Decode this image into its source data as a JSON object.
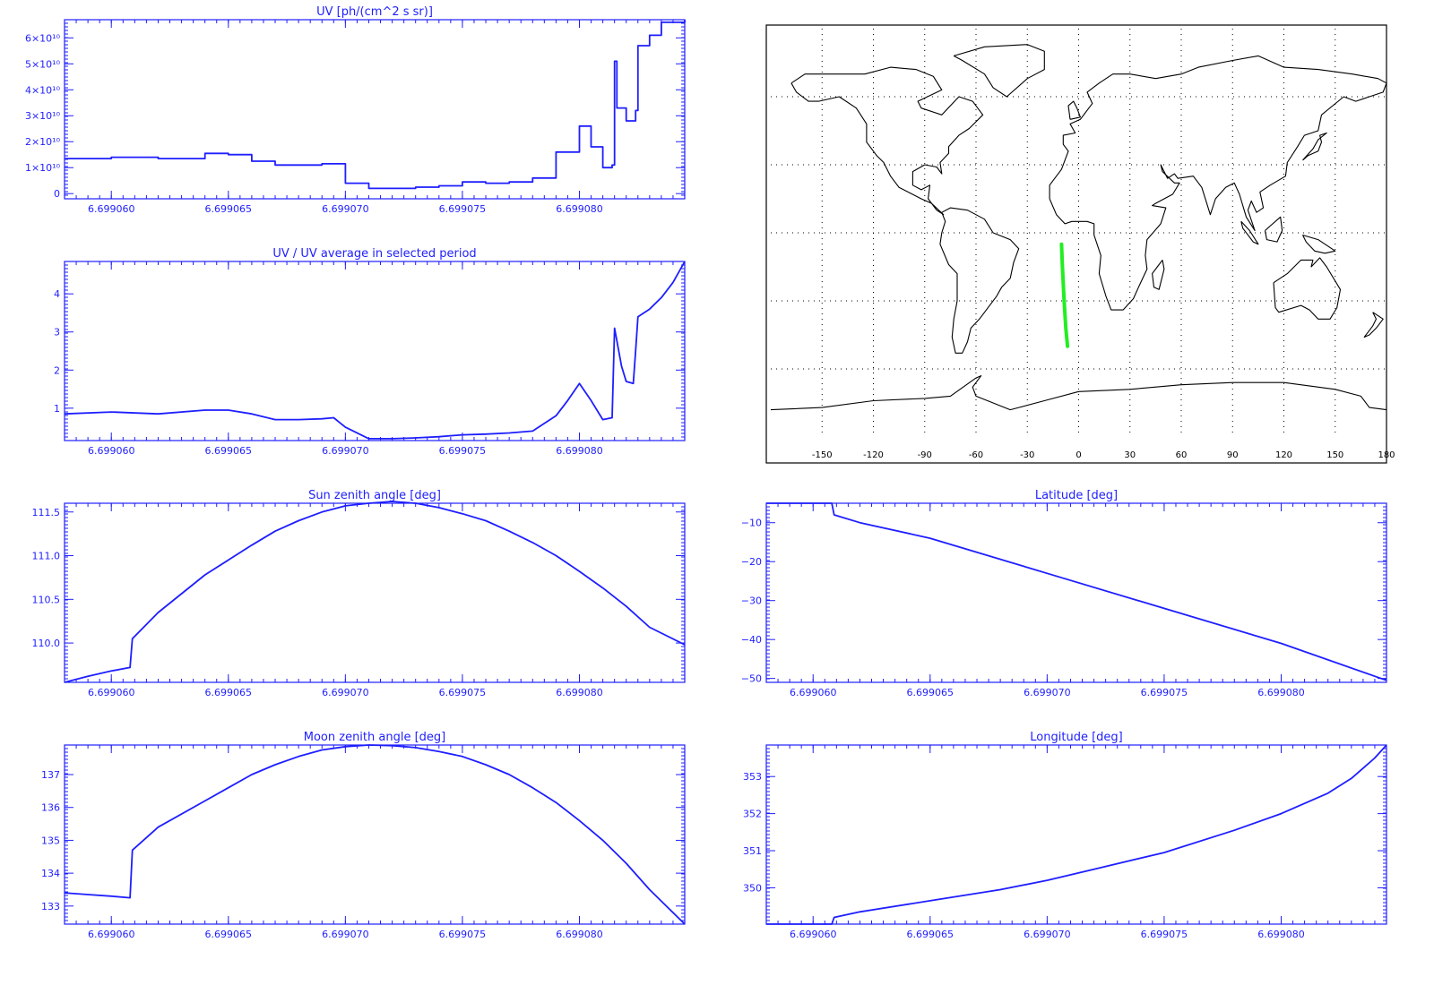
{
  "colors": {
    "axis": "#1e1eff",
    "series": "#1e1eff",
    "track": "#22ee22",
    "map": "#000000"
  },
  "chart_data": [
    {
      "id": "uv",
      "type": "line",
      "step": true,
      "title": "UV [ph/(cm^2 s sr)]",
      "xlim": [
        6.699058,
        6.6990845
      ],
      "ylim": [
        -0.2,
        6.7
      ],
      "x_ticks": [
        6.69906,
        6.699065,
        6.69907,
        6.699075,
        6.69908
      ],
      "x_tick_labels": [
        "6.699060",
        "6.699065",
        "6.699070",
        "6.699075",
        "6.699080"
      ],
      "y_ticks": [
        0,
        1,
        2,
        3,
        4,
        5,
        6
      ],
      "y_tick_labels": [
        "0",
        "1×10¹⁰",
        "2×10¹⁰",
        "3×10¹⁰",
        "4×10¹⁰",
        "5×10¹⁰",
        "6×10¹⁰"
      ],
      "y_unit_note": "values in units of 1e10",
      "x": [
        6.699058,
        6.69906,
        6.699062,
        6.699064,
        6.699065,
        6.699066,
        6.699067,
        6.699068,
        6.699069,
        6.69907,
        6.699071,
        6.699072,
        6.699073,
        6.699074,
        6.699075,
        6.699076,
        6.699077,
        6.699078,
        6.699079,
        6.69908,
        6.6990805,
        6.699081,
        6.6990814,
        6.6990815,
        6.6990816,
        6.699082,
        6.6990824,
        6.6990825,
        6.699083,
        6.6990835,
        6.6990845
      ],
      "y": [
        1.35,
        1.4,
        1.35,
        1.55,
        1.5,
        1.25,
        1.1,
        1.1,
        1.15,
        0.4,
        0.2,
        0.2,
        0.25,
        0.3,
        0.45,
        0.4,
        0.45,
        0.6,
        1.6,
        2.6,
        1.8,
        1.0,
        1.1,
        5.1,
        3.3,
        2.8,
        3.2,
        5.7,
        6.1,
        6.6,
        6.7
      ]
    },
    {
      "id": "uv-ratio",
      "type": "line",
      "title": "UV / UV average in selected period",
      "xlim": [
        6.699058,
        6.6990845
      ],
      "ylim": [
        0.15,
        4.85
      ],
      "x_ticks": [
        6.69906,
        6.699065,
        6.69907,
        6.699075,
        6.69908
      ],
      "x_tick_labels": [
        "6.699060",
        "6.699065",
        "6.699070",
        "6.699075",
        "6.699080"
      ],
      "y_ticks": [
        1,
        2,
        3,
        4
      ],
      "y_tick_labels": [
        "1",
        "2",
        "3",
        "4"
      ],
      "x": [
        6.699058,
        6.69906,
        6.699062,
        6.699064,
        6.699065,
        6.699066,
        6.699067,
        6.699068,
        6.699069,
        6.6990695,
        6.69907,
        6.699071,
        6.699072,
        6.699073,
        6.699074,
        6.699075,
        6.699076,
        6.699077,
        6.699078,
        6.699079,
        6.6990795,
        6.69908,
        6.6990805,
        6.699081,
        6.6990814,
        6.6990815,
        6.6990818,
        6.699082,
        6.6990823,
        6.6990824,
        6.6990825,
        6.699083,
        6.6990835,
        6.699084,
        6.6990845
      ],
      "y": [
        0.85,
        0.9,
        0.85,
        0.95,
        0.95,
        0.85,
        0.7,
        0.7,
        0.72,
        0.75,
        0.5,
        0.2,
        0.2,
        0.22,
        0.25,
        0.3,
        0.32,
        0.35,
        0.4,
        0.8,
        1.2,
        1.65,
        1.2,
        0.7,
        0.75,
        3.1,
        2.1,
        1.7,
        1.65,
        2.5,
        3.4,
        3.6,
        3.9,
        4.3,
        4.85
      ]
    },
    {
      "id": "sun-zenith",
      "type": "line",
      "title": "Sun zenith angle [deg]",
      "xlim": [
        6.699058,
        6.6990845
      ],
      "ylim": [
        109.55,
        111.6
      ],
      "x_ticks": [
        6.69906,
        6.699065,
        6.69907,
        6.699075,
        6.69908
      ],
      "x_tick_labels": [
        "6.699060",
        "6.699065",
        "6.699070",
        "6.699075",
        "6.699080"
      ],
      "y_ticks": [
        110.0,
        110.5,
        111.0,
        111.5
      ],
      "y_tick_labels": [
        "110.0",
        "110.5",
        "111.0",
        "111.5"
      ],
      "x": [
        6.699058,
        6.699059,
        6.69906,
        6.6990608,
        6.6990609,
        6.699062,
        6.699064,
        6.699065,
        6.699066,
        6.699067,
        6.699068,
        6.699069,
        6.69907,
        6.699071,
        6.699072,
        6.699073,
        6.699074,
        6.699075,
        6.699076,
        6.699077,
        6.699078,
        6.699079,
        6.69908,
        6.699081,
        6.699082,
        6.699083,
        6.6990845
      ],
      "y": [
        109.55,
        109.62,
        109.68,
        109.72,
        110.05,
        110.35,
        110.78,
        110.95,
        111.12,
        111.28,
        111.4,
        111.5,
        111.57,
        111.6,
        111.62,
        111.6,
        111.55,
        111.48,
        111.4,
        111.28,
        111.15,
        111.0,
        110.82,
        110.63,
        110.42,
        110.18,
        109.98
      ]
    },
    {
      "id": "latitude",
      "type": "line",
      "title": "Latitude [deg]",
      "xlim": [
        6.699058,
        6.6990845
      ],
      "ylim": [
        -51,
        -5
      ],
      "x_ticks": [
        6.69906,
        6.699065,
        6.69907,
        6.699075,
        6.69908
      ],
      "x_tick_labels": [
        "6.699060",
        "6.699065",
        "6.699070",
        "6.699075",
        "6.699080"
      ],
      "y_ticks": [
        -10,
        -20,
        -30,
        -40,
        -50
      ],
      "y_tick_labels": [
        "−10",
        "−20",
        "−30",
        "−40",
        "−50"
      ],
      "x": [
        6.699058,
        6.69906,
        6.6990608,
        6.6990609,
        6.699062,
        6.699065,
        6.69907,
        6.699075,
        6.69908,
        6.6990845
      ],
      "y": [
        -5,
        -5,
        -5,
        -8,
        -10,
        -14,
        -23,
        -32,
        -41,
        -50.5
      ]
    },
    {
      "id": "moon-zenith",
      "type": "line",
      "title": "Moon zenith angle [deg]",
      "xlim": [
        6.699058,
        6.6990845
      ],
      "ylim": [
        132.45,
        137.9
      ],
      "x_ticks": [
        6.69906,
        6.699065,
        6.69907,
        6.699075,
        6.69908
      ],
      "x_tick_labels": [
        "6.699060",
        "6.699065",
        "6.699070",
        "6.699075",
        "6.699080"
      ],
      "y_ticks": [
        133,
        134,
        135,
        136,
        137
      ],
      "y_tick_labels": [
        "133",
        "134",
        "135",
        "136",
        "137"
      ],
      "x": [
        6.699058,
        6.699059,
        6.69906,
        6.6990608,
        6.6990609,
        6.699062,
        6.699064,
        6.699065,
        6.699066,
        6.699067,
        6.699068,
        6.699069,
        6.69907,
        6.699071,
        6.699072,
        6.699073,
        6.699074,
        6.699075,
        6.699076,
        6.699077,
        6.699078,
        6.699079,
        6.69908,
        6.699081,
        6.699082,
        6.699083,
        6.6990845
      ],
      "y": [
        133.4,
        133.35,
        133.3,
        133.25,
        134.7,
        135.4,
        136.2,
        136.6,
        137.0,
        137.3,
        137.55,
        137.75,
        137.85,
        137.9,
        137.88,
        137.82,
        137.7,
        137.55,
        137.3,
        137.0,
        136.6,
        136.15,
        135.6,
        135.0,
        134.3,
        133.5,
        132.45
      ]
    },
    {
      "id": "longitude",
      "type": "line",
      "title": "Longitude [deg]",
      "xlim": [
        6.699058,
        6.6990845
      ],
      "ylim": [
        349.02,
        353.85
      ],
      "x_ticks": [
        6.69906,
        6.699065,
        6.69907,
        6.699075,
        6.69908
      ],
      "x_tick_labels": [
        "6.699060",
        "6.699065",
        "6.699070",
        "6.699075",
        "6.699080"
      ],
      "y_ticks": [
        350,
        351,
        352,
        353
      ],
      "y_tick_labels": [
        "350",
        "351",
        "352",
        "353"
      ],
      "x": [
        6.699058,
        6.69906,
        6.6990608,
        6.6990609,
        6.699062,
        6.699065,
        6.699068,
        6.69907,
        6.699072,
        6.699075,
        6.699078,
        6.69908,
        6.699082,
        6.699083,
        6.699084,
        6.6990845
      ],
      "y": [
        349.02,
        349.02,
        349.02,
        349.2,
        349.35,
        349.65,
        349.95,
        350.2,
        350.5,
        350.95,
        351.55,
        352.0,
        352.55,
        352.95,
        353.5,
        353.85
      ]
    },
    {
      "id": "ground-track-map",
      "type": "scatter",
      "xlim": [
        -180,
        180
      ],
      "ylim": [
        -90,
        90
      ],
      "x_tick_labels": [
        "-150",
        "-120",
        "-90",
        "-60",
        "-30",
        "0",
        "30",
        "60",
        "90",
        "120",
        "150",
        "180"
      ],
      "x_ticks": [
        -150,
        -120,
        -90,
        -60,
        -30,
        0,
        30,
        60,
        90,
        120,
        150,
        180
      ],
      "grid": true,
      "track": {
        "lon": [
          -10,
          -9.5,
          -8.5,
          -7.5,
          -6.5
        ],
        "lat": [
          -5,
          -15,
          -30,
          -42,
          -50
        ]
      }
    }
  ]
}
